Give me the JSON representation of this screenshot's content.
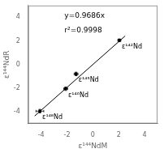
{
  "chart_data": {
    "type": "scatter",
    "x_label": "ε¹⁴⁴NdM",
    "y_label": "ε¹⁴⁴NdR",
    "xlim": [
      -5,
      5
    ],
    "ylim": [
      -5,
      5
    ],
    "xticks": [
      -4,
      -2,
      0,
      2,
      4
    ],
    "yticks": [
      -4,
      -2,
      0,
      2,
      4
    ],
    "grid": false,
    "annotations": [
      "y=0.9686x",
      "r²=0.9998"
    ],
    "series": [
      {
        "type": "line",
        "color": "black",
        "line_style": "solid",
        "x": [
          -4.5,
          2.5
        ],
        "values": [
          -4.3587,
          2.4215
        ]
      },
      {
        "type": "scatter",
        "color": "black",
        "marker": "square",
        "x": [
          -4.1,
          -2.1,
          -1.3,
          2.05
        ],
        "values": [
          -3.95,
          -2.05,
          -0.8,
          2.05
        ],
        "xerr": [
          0.3,
          0.15,
          0.15,
          0.12
        ],
        "yerr": [
          0.15,
          0.15,
          0.15,
          0.12
        ],
        "point_labels": [
          "ε¹⁴⁸Nd",
          "ε¹⁴⁶Nd",
          "ε¹⁴⁵Nd",
          "ε¹⁴²Nd"
        ]
      }
    ]
  }
}
